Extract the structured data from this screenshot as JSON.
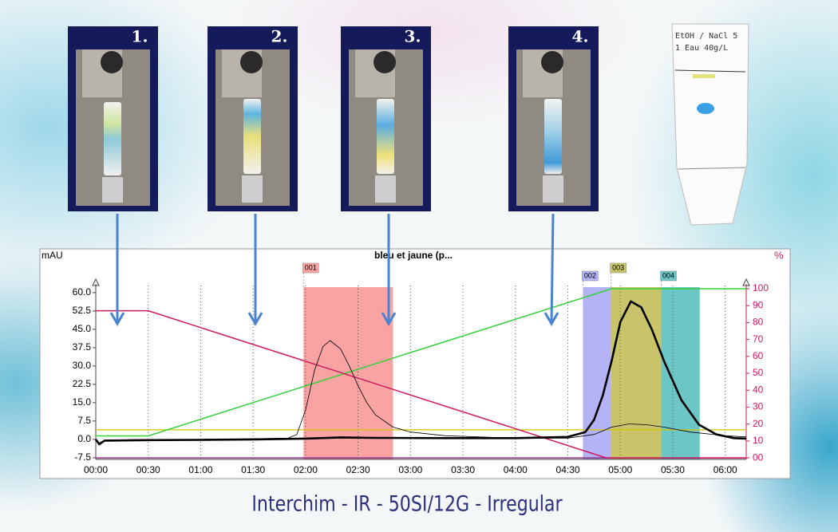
{
  "panels": [
    "1.",
    "2.",
    "3.",
    "4."
  ],
  "plate": {
    "lines": [
      "EtOH / NaCl  5",
      "1      Eau 40g/L"
    ]
  },
  "caption": "Interchim - IR - 50SI/12G - Irregular",
  "chart_data": {
    "type": "line",
    "title": "bleu et jaune (p...",
    "y_label": "mAU",
    "y2_label": "%",
    "xlim": [
      0,
      372
    ],
    "ylim": [
      -8.2,
      62.9
    ],
    "y2lim": [
      -0.9,
      101.9
    ],
    "grid": true,
    "xticks": [
      {
        "value": 0,
        "label": "00:00"
      },
      {
        "value": 30,
        "label": "00:30"
      },
      {
        "value": 60,
        "label": "01:00"
      },
      {
        "value": 90,
        "label": "01:30"
      },
      {
        "value": 120,
        "label": "02:00"
      },
      {
        "value": 150,
        "label": "02:30"
      },
      {
        "value": 180,
        "label": "03:00"
      },
      {
        "value": 210,
        "label": "03:30"
      },
      {
        "value": 240,
        "label": "04:00"
      },
      {
        "value": 270,
        "label": "04:30"
      },
      {
        "value": 300,
        "label": "05:00"
      },
      {
        "value": 330,
        "label": "05:30"
      },
      {
        "value": 360,
        "label": "06:00"
      }
    ],
    "yticks": [
      {
        "value": 60,
        "label": "60.0"
      },
      52.5,
      {
        "value": 45,
        "label": "45.0"
      },
      37.5,
      {
        "value": 30,
        "label": "30.0"
      },
      22.5,
      {
        "value": 15,
        "label": "15.0"
      },
      7.5,
      {
        "value": 0,
        "label": "0.0"
      },
      -7.5
    ],
    "y2ticks": [
      100,
      90,
      80,
      70,
      60,
      50,
      40,
      30,
      20,
      10,
      {
        "value": 0,
        "label": "00"
      }
    ],
    "fractions": [
      {
        "label": "001",
        "start": 118.8,
        "end": 170,
        "color": "#f9a3a3"
      },
      {
        "label": "002",
        "start": 278.6,
        "end": 294.7,
        "color": "#b3b3f5"
      },
      {
        "label": "003",
        "start": 294.7,
        "end": 323.4,
        "color": "#c9c46a"
      },
      {
        "label": "004",
        "start": 323.4,
        "end": 345.4,
        "color": "#6cc6c6"
      }
    ],
    "series": [
      {
        "color": "#d4c400",
        "axis": "y",
        "width": 1.2,
        "x": [
          0,
          372
        ],
        "values": [
          3.9,
          3.9
        ]
      },
      {
        "color": "#8b2f8b",
        "axis": "y2",
        "width": 1.5,
        "x": [
          0,
          372
        ],
        "values": [
          0,
          0
        ]
      },
      {
        "color": "#34d13a",
        "axis": "y2",
        "width": 1.5,
        "x": [
          0,
          30,
          295,
          372
        ],
        "values": [
          13,
          13,
          100,
          100
        ]
      },
      {
        "color": "#d0185e",
        "axis": "y2",
        "width": 1.5,
        "x": [
          0,
          30,
          292,
          372
        ],
        "values": [
          87,
          87,
          0,
          0
        ]
      },
      {
        "color": "#000000",
        "axis": "y",
        "width": 0.8,
        "x": [
          0,
          2,
          5,
          30,
          60,
          90,
          110,
          115,
          120,
          125,
          130,
          134,
          140,
          145,
          150,
          155,
          160,
          170,
          180,
          200,
          240,
          270,
          285,
          295,
          305,
          315,
          325,
          340,
          360,
          372
        ],
        "values": [
          0,
          -1.5,
          -0.3,
          0,
          0,
          0.2,
          0.5,
          2,
          12,
          28,
          38,
          40.4,
          37,
          30,
          22,
          15,
          10,
          5,
          3,
          1.5,
          0.5,
          0.5,
          2,
          5,
          6.3,
          6,
          5,
          3,
          1.5,
          1
        ]
      },
      {
        "color": "#000000",
        "axis": "y",
        "width": 2.6,
        "x": [
          0,
          2,
          5,
          30,
          60,
          90,
          120,
          140,
          160,
          200,
          240,
          270,
          280,
          285,
          290,
          295,
          300,
          306,
          312,
          318,
          325,
          335,
          345,
          355,
          365,
          372
        ],
        "values": [
          0,
          -2,
          -0.5,
          -0.3,
          -0.2,
          0,
          0.3,
          0.8,
          0.6,
          0.5,
          0.5,
          1,
          3,
          8,
          18,
          32,
          48,
          56.4,
          54,
          45,
          32,
          16,
          6,
          2,
          0.5,
          0.3
        ]
      }
    ]
  }
}
